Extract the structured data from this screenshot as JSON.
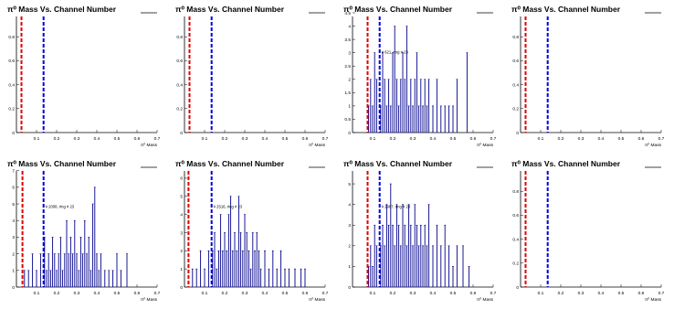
{
  "chart_data": [
    {
      "type": "histogram",
      "title": "#pi^{0} Mass Vs. Channel Number",
      "title_display": "π⁰ Mass Vs. Channel Number",
      "xlabel": "π⁰ Mass",
      "xlim": [
        0,
        0.7
      ],
      "ylim": [
        0,
        1.0
      ],
      "xticks": [
        "0.1",
        "0.2",
        "0.3",
        "0.4",
        "0.5",
        "0.6",
        "0.7"
      ],
      "yticks": [
        "0",
        "0.2",
        "0.4",
        "0.6",
        "0.8"
      ],
      "annotation": "",
      "lines": [
        {
          "x": 0.025,
          "color": "#dd0000"
        },
        {
          "x": 0.135,
          "color": "#0000dd"
        }
      ],
      "series_color": "#00008b",
      "values": []
    },
    {
      "type": "histogram",
      "title": "#pi^{0} Mass Vs. Channel Number",
      "title_display": "π⁰ Mass Vs. Channel Number",
      "xlabel": "π⁰ Mass",
      "xlim": [
        0,
        0.7
      ],
      "ylim": [
        0,
        1.0
      ],
      "xticks": [
        "0.1",
        "0.2",
        "0.3",
        "0.4",
        "0.5",
        "0.6",
        "0.7"
      ],
      "yticks": [
        "0",
        "0.2",
        "0.4",
        "0.6",
        "0.8"
      ],
      "annotation": "",
      "lines": [
        {
          "x": 0.025,
          "color": "#dd0000"
        },
        {
          "x": 0.135,
          "color": "#0000dd"
        }
      ],
      "series_color": "#00008b",
      "values": []
    },
    {
      "type": "histogram",
      "title": "#pi^{0} Mass Vs. Channel Number",
      "title_display": "π⁰ Mass Vs. Channel Number",
      "xlabel": "π⁰ Mass",
      "xlim": [
        0,
        0.7
      ],
      "ylim": [
        0,
        4.5
      ],
      "xticks": [
        "0.1",
        "0.2",
        "0.3",
        "0.4",
        "0.5",
        "0.6",
        "0.7"
      ],
      "yticks": [
        "0",
        "0.5",
        "1",
        "1.5",
        "2",
        "2.5",
        "3",
        "3.5",
        "4",
        "4.5"
      ],
      "annotation": "# 621, ring # 23",
      "lines": [
        {
          "x": 0.075,
          "color": "#dd0000"
        },
        {
          "x": 0.135,
          "color": "#0000dd"
        }
      ],
      "series_color": "#00008b",
      "values": [
        {
          "x": 0.08,
          "y": 1.0
        },
        {
          "x": 0.09,
          "y": 2.0
        },
        {
          "x": 0.1,
          "y": 1.0
        },
        {
          "x": 0.11,
          "y": 3.0
        },
        {
          "x": 0.12,
          "y": 2.0
        },
        {
          "x": 0.14,
          "y": 1.0
        },
        {
          "x": 0.15,
          "y": 3.0
        },
        {
          "x": 0.16,
          "y": 2.0
        },
        {
          "x": 0.17,
          "y": 1.0
        },
        {
          "x": 0.18,
          "y": 2.0
        },
        {
          "x": 0.19,
          "y": 1.0
        },
        {
          "x": 0.2,
          "y": 3.0
        },
        {
          "x": 0.21,
          "y": 4.0
        },
        {
          "x": 0.22,
          "y": 2.0
        },
        {
          "x": 0.23,
          "y": 1.0
        },
        {
          "x": 0.24,
          "y": 2.0
        },
        {
          "x": 0.25,
          "y": 3.0
        },
        {
          "x": 0.26,
          "y": 2.0
        },
        {
          "x": 0.27,
          "y": 4.0
        },
        {
          "x": 0.28,
          "y": 1.0
        },
        {
          "x": 0.29,
          "y": 2.0
        },
        {
          "x": 0.3,
          "y": 1.0
        },
        {
          "x": 0.31,
          "y": 2.0
        },
        {
          "x": 0.32,
          "y": 3.0
        },
        {
          "x": 0.33,
          "y": 1.0
        },
        {
          "x": 0.34,
          "y": 2.0
        },
        {
          "x": 0.35,
          "y": 1.0
        },
        {
          "x": 0.36,
          "y": 2.0
        },
        {
          "x": 0.37,
          "y": 1.0
        },
        {
          "x": 0.38,
          "y": 2.0
        },
        {
          "x": 0.4,
          "y": 1.0
        },
        {
          "x": 0.42,
          "y": 2.0
        },
        {
          "x": 0.44,
          "y": 1.0
        },
        {
          "x": 0.46,
          "y": 1.0
        },
        {
          "x": 0.48,
          "y": 1.0
        },
        {
          "x": 0.5,
          "y": 1.0
        },
        {
          "x": 0.52,
          "y": 2.0
        },
        {
          "x": 0.57,
          "y": 3.0
        }
      ]
    },
    {
      "type": "histogram",
      "title": "#pi^{0} Mass Vs. Channel Number",
      "title_display": "π⁰ Mass Vs. Channel Number",
      "xlabel": "π⁰ Mass",
      "xlim": [
        0,
        0.7
      ],
      "ylim": [
        0,
        1.0
      ],
      "xticks": [
        "0.1",
        "0.2",
        "0.3",
        "0.4",
        "0.5",
        "0.6",
        "0.7"
      ],
      "yticks": [
        "0",
        "0.2",
        "0.4",
        "0.6",
        "0.8"
      ],
      "annotation": "",
      "lines": [
        {
          "x": 0.025,
          "color": "#dd0000"
        },
        {
          "x": 0.135,
          "color": "#0000dd"
        }
      ],
      "series_color": "#00008b",
      "values": []
    },
    {
      "type": "histogram",
      "title": "#pi^{0} Mass Vs. Channel Number",
      "title_display": "π⁰ Mass Vs. Channel Number",
      "xlabel": "π⁰ Mass",
      "xlim": [
        0,
        0.7
      ],
      "ylim": [
        0,
        7.2
      ],
      "xticks": [
        "0.1",
        "0.2",
        "0.3",
        "0.4",
        "0.5",
        "0.6",
        "0.7"
      ],
      "yticks": [
        "0",
        "1",
        "2",
        "3",
        "4",
        "5",
        "6",
        "7"
      ],
      "annotation": "# 2008, ring # 23",
      "lines": [
        {
          "x": 0.03,
          "color": "#dd0000"
        },
        {
          "x": 0.135,
          "color": "#0000dd"
        }
      ],
      "series_color": "#00008b",
      "values": [
        {
          "x": 0.04,
          "y": 1.0
        },
        {
          "x": 0.06,
          "y": 1.0
        },
        {
          "x": 0.08,
          "y": 2.0
        },
        {
          "x": 0.1,
          "y": 1.0
        },
        {
          "x": 0.12,
          "y": 2.0
        },
        {
          "x": 0.14,
          "y": 3.0
        },
        {
          "x": 0.15,
          "y": 1.0
        },
        {
          "x": 0.16,
          "y": 2.0
        },
        {
          "x": 0.17,
          "y": 1.0
        },
        {
          "x": 0.18,
          "y": 3.0
        },
        {
          "x": 0.19,
          "y": 2.0
        },
        {
          "x": 0.2,
          "y": 1.0
        },
        {
          "x": 0.21,
          "y": 2.0
        },
        {
          "x": 0.22,
          "y": 3.0
        },
        {
          "x": 0.23,
          "y": 1.0
        },
        {
          "x": 0.24,
          "y": 2.0
        },
        {
          "x": 0.25,
          "y": 4.0
        },
        {
          "x": 0.26,
          "y": 2.0
        },
        {
          "x": 0.27,
          "y": 3.0
        },
        {
          "x": 0.28,
          "y": 2.0
        },
        {
          "x": 0.29,
          "y": 4.0
        },
        {
          "x": 0.3,
          "y": 2.0
        },
        {
          "x": 0.31,
          "y": 1.0
        },
        {
          "x": 0.32,
          "y": 3.0
        },
        {
          "x": 0.33,
          "y": 2.0
        },
        {
          "x": 0.34,
          "y": 4.0
        },
        {
          "x": 0.35,
          "y": 2.0
        },
        {
          "x": 0.36,
          "y": 3.0
        },
        {
          "x": 0.37,
          "y": 1.0
        },
        {
          "x": 0.38,
          "y": 5.0
        },
        {
          "x": 0.39,
          "y": 6.0
        },
        {
          "x": 0.4,
          "y": 2.0
        },
        {
          "x": 0.41,
          "y": 1.0
        },
        {
          "x": 0.42,
          "y": 2.0
        },
        {
          "x": 0.44,
          "y": 1.0
        },
        {
          "x": 0.46,
          "y": 1.0
        },
        {
          "x": 0.48,
          "y": 1.0
        },
        {
          "x": 0.5,
          "y": 2.0
        },
        {
          "x": 0.52,
          "y": 1.0
        },
        {
          "x": 0.55,
          "y": 2.0
        }
      ]
    },
    {
      "type": "histogram",
      "title": "#pi^{0} Mass Vs. Channel Number",
      "title_display": "π⁰ Mass Vs. Channel Number",
      "xlabel": "π⁰ Mass",
      "xlim": [
        0,
        0.7
      ],
      "ylim": [
        0,
        6.6
      ],
      "xticks": [
        "0.1",
        "0.2",
        "0.3",
        "0.4",
        "0.5",
        "0.6",
        "0.7"
      ],
      "yticks": [
        "0",
        "1",
        "2",
        "3",
        "4",
        "5",
        "6"
      ],
      "annotation": "# 2516, ring # 23",
      "lines": [
        {
          "x": 0.02,
          "color": "#dd0000"
        },
        {
          "x": 0.135,
          "color": "#0000dd"
        }
      ],
      "series_color": "#00008b",
      "values": [
        {
          "x": 0.04,
          "y": 1.0
        },
        {
          "x": 0.06,
          "y": 1.0
        },
        {
          "x": 0.08,
          "y": 2.0
        },
        {
          "x": 0.1,
          "y": 1.0
        },
        {
          "x": 0.12,
          "y": 2.0
        },
        {
          "x": 0.14,
          "y": 2.0
        },
        {
          "x": 0.15,
          "y": 3.0
        },
        {
          "x": 0.16,
          "y": 1.0
        },
        {
          "x": 0.17,
          "y": 2.0
        },
        {
          "x": 0.18,
          "y": 4.0
        },
        {
          "x": 0.19,
          "y": 2.0
        },
        {
          "x": 0.2,
          "y": 3.0
        },
        {
          "x": 0.21,
          "y": 2.0
        },
        {
          "x": 0.22,
          "y": 4.0
        },
        {
          "x": 0.23,
          "y": 5.0
        },
        {
          "x": 0.24,
          "y": 2.0
        },
        {
          "x": 0.25,
          "y": 3.0
        },
        {
          "x": 0.26,
          "y": 2.0
        },
        {
          "x": 0.27,
          "y": 5.0
        },
        {
          "x": 0.28,
          "y": 3.0
        },
        {
          "x": 0.29,
          "y": 2.0
        },
        {
          "x": 0.3,
          "y": 4.0
        },
        {
          "x": 0.31,
          "y": 3.0
        },
        {
          "x": 0.32,
          "y": 2.0
        },
        {
          "x": 0.33,
          "y": 1.0
        },
        {
          "x": 0.34,
          "y": 3.0
        },
        {
          "x": 0.35,
          "y": 2.0
        },
        {
          "x": 0.36,
          "y": 3.0
        },
        {
          "x": 0.37,
          "y": 2.0
        },
        {
          "x": 0.38,
          "y": 1.0
        },
        {
          "x": 0.4,
          "y": 2.0
        },
        {
          "x": 0.42,
          "y": 1.0
        },
        {
          "x": 0.44,
          "y": 2.0
        },
        {
          "x": 0.46,
          "y": 1.0
        },
        {
          "x": 0.48,
          "y": 2.0
        },
        {
          "x": 0.5,
          "y": 1.0
        },
        {
          "x": 0.52,
          "y": 1.0
        },
        {
          "x": 0.55,
          "y": 1.0
        },
        {
          "x": 0.58,
          "y": 1.0
        },
        {
          "x": 0.6,
          "y": 1.0
        }
      ]
    },
    {
      "type": "histogram",
      "title": "#pi^{0} Mass Vs. Channel Number",
      "title_display": "π⁰ Mass Vs. Channel Number",
      "xlabel": "π⁰ Mass",
      "xlim": [
        0,
        0.7
      ],
      "ylim": [
        0,
        5.8
      ],
      "xticks": [
        "0.1",
        "0.2",
        "0.3",
        "0.4",
        "0.5",
        "0.6",
        "0.7"
      ],
      "yticks": [
        "0",
        "1",
        "2",
        "3",
        "4",
        "5"
      ],
      "annotation": "# 2987, ring # 23",
      "lines": [
        {
          "x": 0.075,
          "color": "#dd0000"
        },
        {
          "x": 0.135,
          "color": "#0000dd"
        }
      ],
      "series_color": "#00008b",
      "values": [
        {
          "x": 0.08,
          "y": 1.0
        },
        {
          "x": 0.09,
          "y": 2.0
        },
        {
          "x": 0.1,
          "y": 1.0
        },
        {
          "x": 0.11,
          "y": 3.0
        },
        {
          "x": 0.12,
          "y": 2.0
        },
        {
          "x": 0.14,
          "y": 2.0
        },
        {
          "x": 0.15,
          "y": 3.0
        },
        {
          "x": 0.16,
          "y": 2.0
        },
        {
          "x": 0.17,
          "y": 4.0
        },
        {
          "x": 0.18,
          "y": 3.0
        },
        {
          "x": 0.19,
          "y": 5.0
        },
        {
          "x": 0.2,
          "y": 3.0
        },
        {
          "x": 0.21,
          "y": 2.0
        },
        {
          "x": 0.22,
          "y": 4.0
        },
        {
          "x": 0.23,
          "y": 3.0
        },
        {
          "x": 0.24,
          "y": 2.0
        },
        {
          "x": 0.25,
          "y": 4.0
        },
        {
          "x": 0.26,
          "y": 3.0
        },
        {
          "x": 0.27,
          "y": 2.0
        },
        {
          "x": 0.28,
          "y": 4.0
        },
        {
          "x": 0.29,
          "y": 3.0
        },
        {
          "x": 0.3,
          "y": 2.0
        },
        {
          "x": 0.31,
          "y": 4.0
        },
        {
          "x": 0.32,
          "y": 3.0
        },
        {
          "x": 0.33,
          "y": 2.0
        },
        {
          "x": 0.34,
          "y": 3.0
        },
        {
          "x": 0.35,
          "y": 2.0
        },
        {
          "x": 0.36,
          "y": 3.0
        },
        {
          "x": 0.37,
          "y": 2.0
        },
        {
          "x": 0.38,
          "y": 4.0
        },
        {
          "x": 0.4,
          "y": 2.0
        },
        {
          "x": 0.42,
          "y": 3.0
        },
        {
          "x": 0.44,
          "y": 2.0
        },
        {
          "x": 0.46,
          "y": 3.0
        },
        {
          "x": 0.48,
          "y": 2.0
        },
        {
          "x": 0.5,
          "y": 1.0
        },
        {
          "x": 0.52,
          "y": 2.0
        },
        {
          "x": 0.55,
          "y": 2.0
        },
        {
          "x": 0.58,
          "y": 1.0
        }
      ]
    },
    {
      "type": "histogram",
      "title": "#pi^{0} Mass Vs. Channel Number",
      "title_display": "π⁰ Mass Vs. Channel Number",
      "xlabel": "π⁰ Mass",
      "xlim": [
        0,
        0.7
      ],
      "ylim": [
        0,
        1.0
      ],
      "xticks": [
        "0.1",
        "0.2",
        "0.3",
        "0.4",
        "0.5",
        "0.6",
        "0.7"
      ],
      "yticks": [
        "0",
        "0.2",
        "0.4",
        "0.6",
        "0.8"
      ],
      "annotation": "",
      "lines": [
        {
          "x": 0.025,
          "color": "#dd0000"
        },
        {
          "x": 0.135,
          "color": "#0000dd"
        }
      ],
      "series_color": "#00008b",
      "values": []
    }
  ]
}
